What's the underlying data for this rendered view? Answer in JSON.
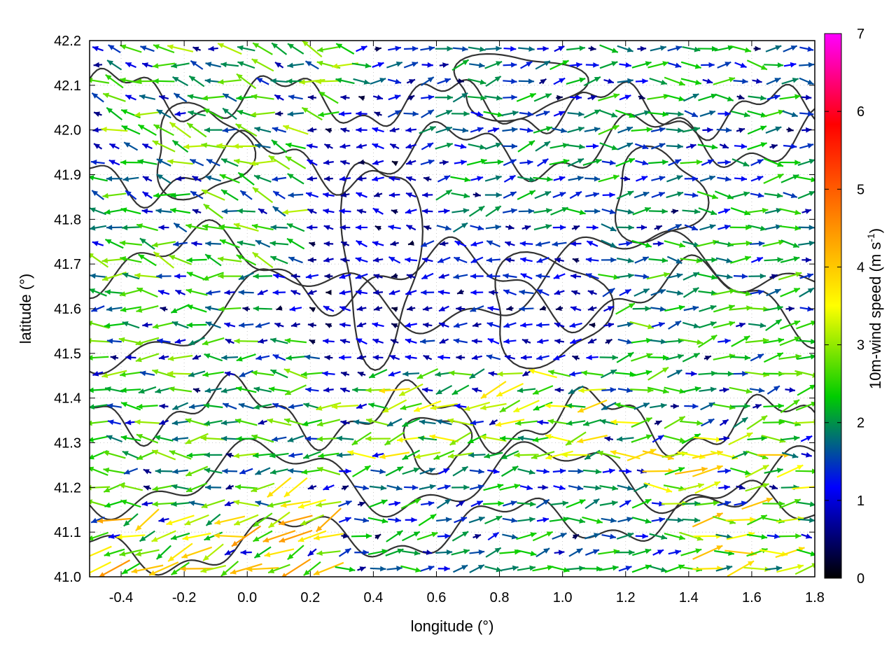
{
  "chart_data": {
    "type": "vector_field",
    "title": "",
    "xlabel": "longitude (°)",
    "ylabel": "latitude (°)",
    "xlim": [
      -0.5,
      1.8
    ],
    "ylim": [
      41.0,
      42.2
    ],
    "xticks": [
      "-0.4",
      "-0.2",
      "0.0",
      "0.2",
      "0.4",
      "0.6",
      "0.8",
      "1.0",
      "1.2",
      "1.4",
      "1.6",
      "1.8"
    ],
    "yticks": [
      "41.0",
      "41.1",
      "41.2",
      "41.3",
      "41.4",
      "41.5",
      "41.6",
      "41.7",
      "41.8",
      "41.9",
      "42.0",
      "42.1",
      "42.2"
    ],
    "grid": true,
    "colorbar": {
      "label_main": "10m-wind speed (m s",
      "label_sup": "-1",
      "label_close": ")",
      "range": [
        0,
        7
      ],
      "ticks": [
        "0",
        "1",
        "2",
        "3",
        "4",
        "5",
        "6",
        "7"
      ],
      "palette": [
        "#000000",
        "#0000ff",
        "#00cc00",
        "#ffff00",
        "#ff8000",
        "#ff0000",
        "#ff00ff"
      ]
    },
    "field_regions": [
      {
        "lon": [
          -0.5,
          0.0
        ],
        "lat": [
          41.0,
          41.15
        ],
        "speed": 3.2,
        "dir_deg": 200
      },
      {
        "lon": [
          -0.5,
          0.1
        ],
        "lat": [
          41.15,
          41.7
        ],
        "speed": 2.2,
        "dir_deg": 180
      },
      {
        "lon": [
          -0.5,
          0.2
        ],
        "lat": [
          41.7,
          42.2
        ],
        "speed": 2.3,
        "dir_deg": 165
      },
      {
        "lon": [
          0.2,
          0.55
        ],
        "lat": [
          41.5,
          42.0
        ],
        "speed": 0.9,
        "dir_deg": 175
      },
      {
        "lon": [
          0.55,
          1.05
        ],
        "lat": [
          41.5,
          41.75
        ],
        "speed": 1.1,
        "dir_deg": 180
      },
      {
        "lon": [
          0.4,
          1.2
        ],
        "lat": [
          41.25,
          41.4
        ],
        "speed": 2.8,
        "dir_deg": 190
      },
      {
        "lon": [
          0.3,
          1.3
        ],
        "lat": [
          41.0,
          41.25
        ],
        "speed": 1.8,
        "dir_deg": 10
      },
      {
        "lon": [
          1.35,
          1.8
        ],
        "lat": [
          41.0,
          41.2
        ],
        "speed": 3.0,
        "dir_deg": 5
      },
      {
        "lon": [
          1.1,
          1.8
        ],
        "lat": [
          41.4,
          41.7
        ],
        "speed": 2.1,
        "dir_deg": 10
      },
      {
        "lon": [
          1.1,
          1.8
        ],
        "lat": [
          41.7,
          42.2
        ],
        "speed": 1.9,
        "dir_deg": 0
      },
      {
        "lon": [
          0.6,
          1.1
        ],
        "lat": [
          41.75,
          42.2
        ],
        "speed": 1.7,
        "dir_deg": 10
      }
    ]
  }
}
